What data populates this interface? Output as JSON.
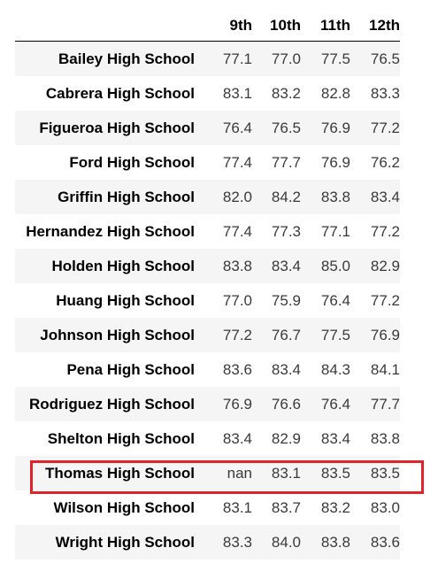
{
  "table": {
    "columns": [
      "9th",
      "10th",
      "11th",
      "12th"
    ],
    "rows": [
      {
        "school": "Bailey High School",
        "values": [
          "77.1",
          "77.0",
          "77.5",
          "76.5"
        ]
      },
      {
        "school": "Cabrera High School",
        "values": [
          "83.1",
          "83.2",
          "82.8",
          "83.3"
        ]
      },
      {
        "school": "Figueroa High School",
        "values": [
          "76.4",
          "76.5",
          "76.9",
          "77.2"
        ]
      },
      {
        "school": "Ford High School",
        "values": [
          "77.4",
          "77.7",
          "76.9",
          "76.2"
        ]
      },
      {
        "school": "Griffin High School",
        "values": [
          "82.0",
          "84.2",
          "83.8",
          "83.4"
        ]
      },
      {
        "school": "Hernandez High School",
        "values": [
          "77.4",
          "77.3",
          "77.1",
          "77.2"
        ]
      },
      {
        "school": "Holden High School",
        "values": [
          "83.8",
          "83.4",
          "85.0",
          "82.9"
        ]
      },
      {
        "school": "Huang High School",
        "values": [
          "77.0",
          "75.9",
          "76.4",
          "77.2"
        ]
      },
      {
        "school": "Johnson High School",
        "values": [
          "77.2",
          "76.7",
          "77.5",
          "76.9"
        ]
      },
      {
        "school": "Pena High School",
        "values": [
          "83.6",
          "83.4",
          "84.3",
          "84.1"
        ]
      },
      {
        "school": "Rodriguez High School",
        "values": [
          "76.9",
          "76.6",
          "76.4",
          "77.7"
        ]
      },
      {
        "school": "Shelton High School",
        "values": [
          "83.4",
          "82.9",
          "83.4",
          "83.8"
        ]
      },
      {
        "school": "Thomas High School",
        "values": [
          "nan",
          "83.1",
          "83.5",
          "83.5"
        ]
      },
      {
        "school": "Wilson High School",
        "values": [
          "83.1",
          "83.7",
          "83.2",
          "83.0"
        ]
      },
      {
        "school": "Wright High School",
        "values": [
          "83.3",
          "84.0",
          "83.8",
          "83.6"
        ]
      }
    ],
    "highlighted_row": "Thomas High School"
  },
  "colors": {
    "highlight_border": "#e0242c",
    "stripe": "#f5f5f5",
    "value_text": "#3a3a3a"
  }
}
